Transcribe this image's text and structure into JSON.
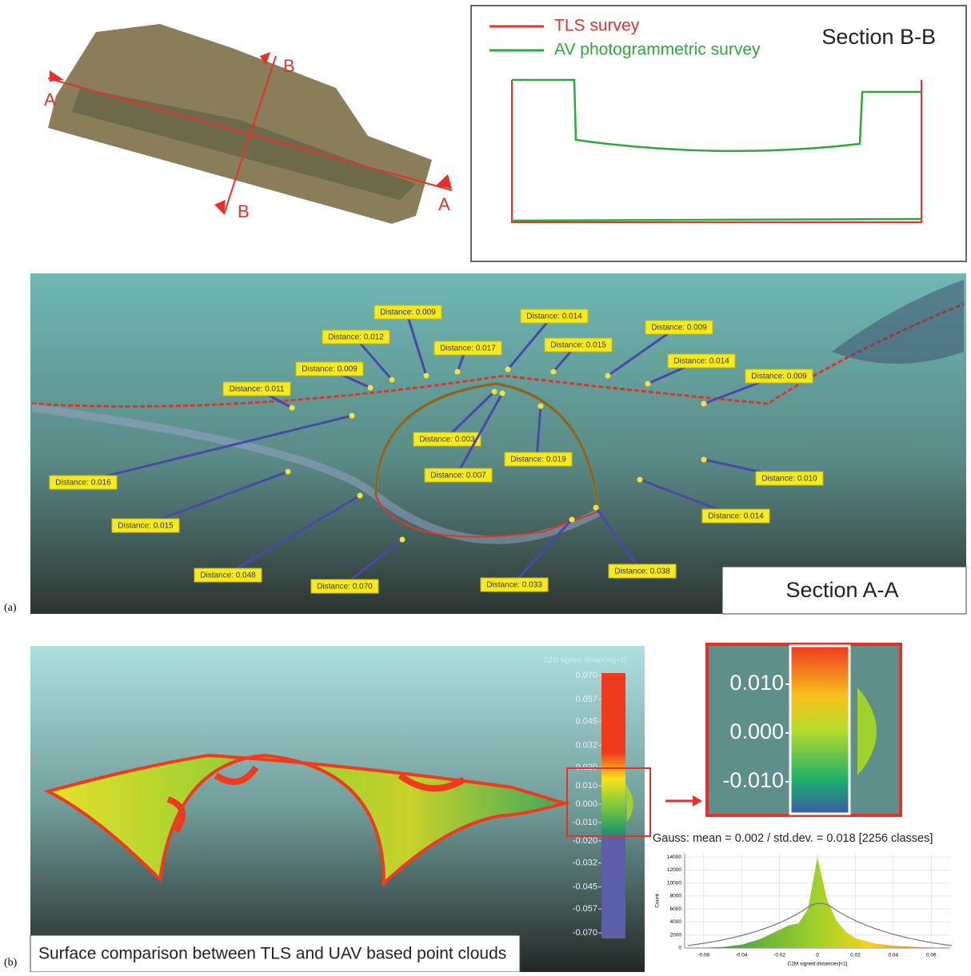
{
  "map": {
    "labels": [
      "A",
      "A",
      "B",
      "B"
    ]
  },
  "section_b": {
    "title": "Section B-B",
    "legend": [
      {
        "name": "TLS survey",
        "color": "#e8302a"
      },
      {
        "name": "AV photogrammetric survey",
        "color": "#2ea83a"
      }
    ]
  },
  "section_a": {
    "panel": "(a)",
    "title": "Section A-A",
    "distances": [
      "Distance: 0.009",
      "Distance: 0.012",
      "Distance: 0.009",
      "Distance: 0.011",
      "Distance: 0.017",
      "Distance: 0.014",
      "Distance: 0.015",
      "Distance: 0.009",
      "Distance: 0.014",
      "Distance: 0.009",
      "Distance: 0.003",
      "Distance: 0.007",
      "Distance: 0.019",
      "Distance: 0.010",
      "Distance: 0.014",
      "Distance: 0.016",
      "Distance: 0.015",
      "Distance: 0.048",
      "Distance: 0.070",
      "Distance: 0.033",
      "Distance: 0.038"
    ]
  },
  "comparison": {
    "panel": "(b)",
    "caption": "Surface comparison between TLS and UAV based point clouds",
    "colorbar_title": "C2M signed distances[<1]",
    "colorbar_ticks": [
      {
        "value": 0.07,
        "label": "0.070"
      },
      {
        "value": 0.057,
        "label": "0.057"
      },
      {
        "value": 0.045,
        "label": "0.045"
      },
      {
        "value": 0.032,
        "label": "0.032"
      },
      {
        "value": 0.02,
        "label": "0.020"
      },
      {
        "value": 0.01,
        "label": "0.010"
      },
      {
        "value": 0,
        "label": "0.000"
      },
      {
        "value": -0.01,
        "label": "-0.010"
      },
      {
        "value": -0.02,
        "label": "-0.020"
      },
      {
        "value": -0.032,
        "label": "-0.032"
      },
      {
        "value": -0.045,
        "label": "-0.045"
      },
      {
        "value": -0.057,
        "label": "-0.057"
      },
      {
        "value": -0.07,
        "label": "-0.070"
      }
    ],
    "zoom_ticks": [
      {
        "value": 0.01,
        "label": "0.010"
      },
      {
        "value": 0,
        "label": "0.000"
      },
      {
        "value": -0.01,
        "label": "-0.010"
      }
    ],
    "gauss": "Gauss: mean = 0.002 / std.dev. = 0.018 [2256 classes]"
  },
  "chart_data": {
    "type": "area",
    "xlabel": "C2M signed distances[<1]",
    "ylabel": "Count",
    "x": [
      -0.07,
      -0.06,
      -0.05,
      -0.04,
      -0.03,
      -0.02,
      -0.015,
      -0.01,
      -0.005,
      0,
      0.005,
      0.01,
      0.015,
      0.02,
      0.03,
      0.04,
      0.05,
      0.06,
      0.07
    ],
    "values": [
      20,
      50,
      150,
      500,
      1400,
      2800,
      3500,
      3800,
      6000,
      14000,
      7500,
      4200,
      2500,
      1500,
      700,
      350,
      180,
      80,
      30
    ],
    "xlim": [
      -0.07,
      0.07
    ],
    "ylim": [
      0,
      14500
    ],
    "xticks": [
      -0.06,
      -0.04,
      -0.02,
      0,
      0.02,
      0.04,
      0.06
    ],
    "yticks": [
      0,
      2000,
      4000,
      6000,
      8000,
      10000,
      12000,
      14000
    ],
    "grid": true
  }
}
